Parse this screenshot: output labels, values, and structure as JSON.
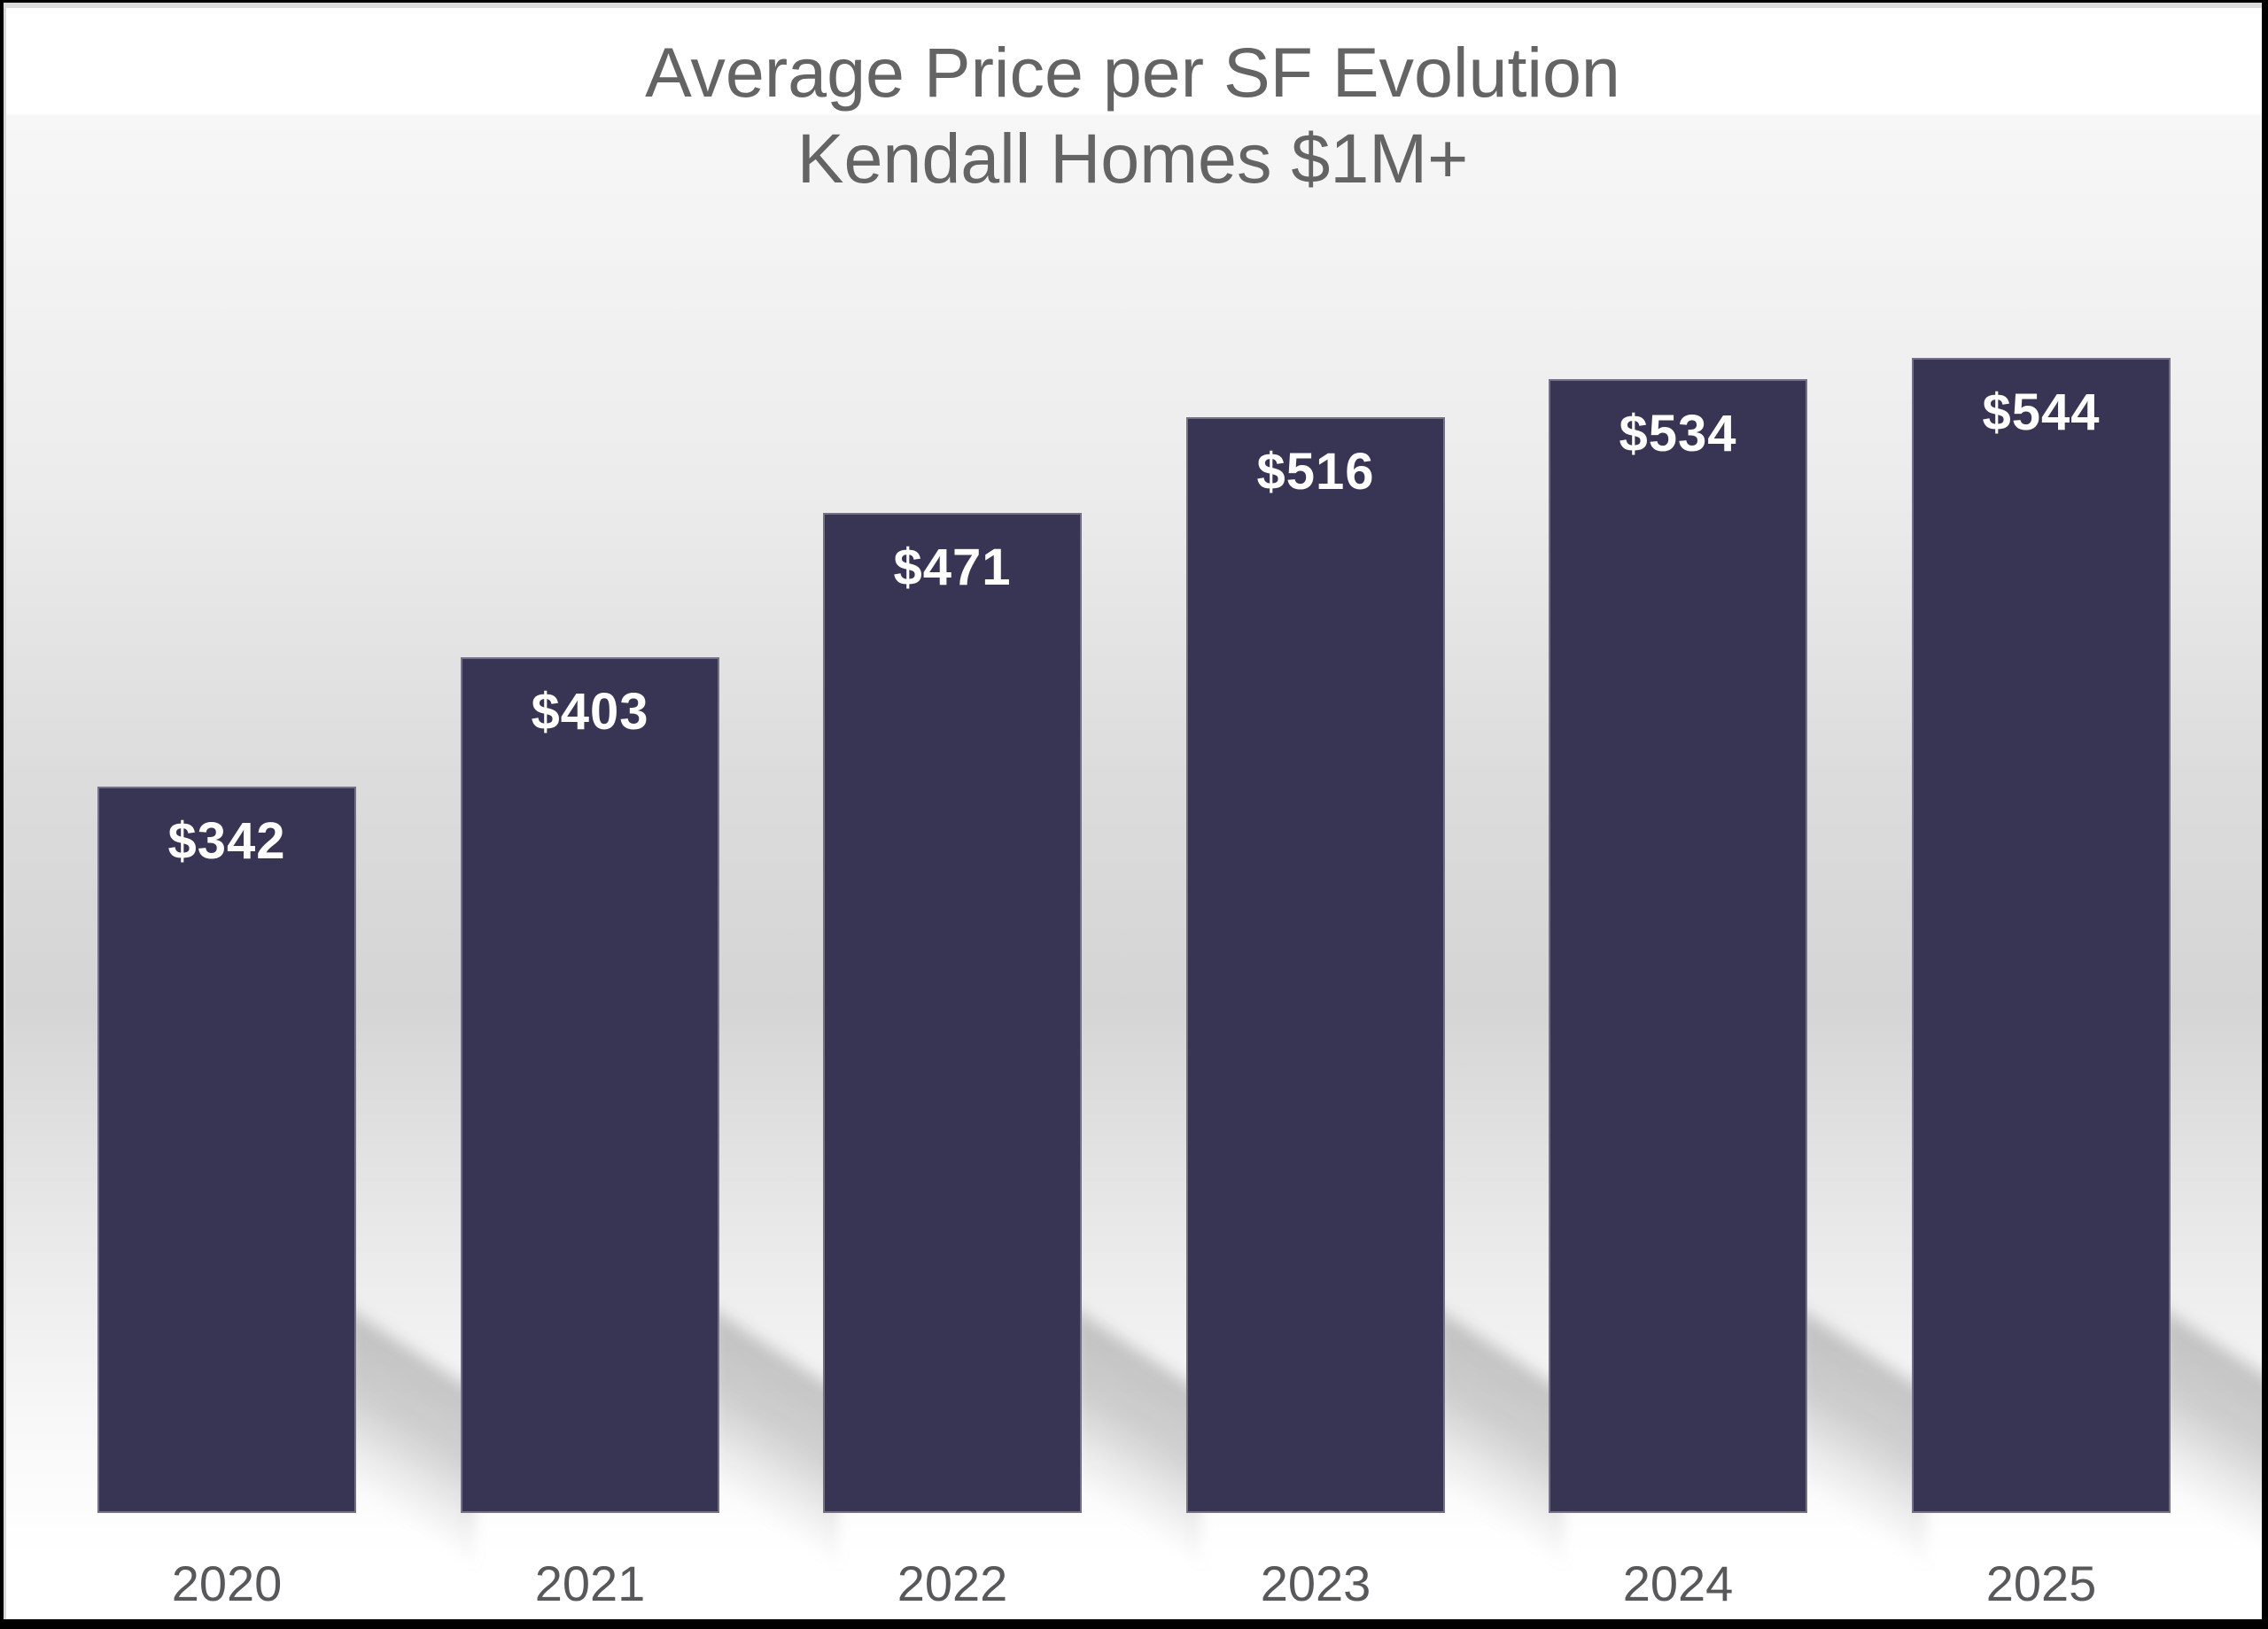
{
  "chart_data": {
    "type": "bar",
    "title": "Average Price per SF Evolution",
    "subtitle": "Kendall Homes $1M+",
    "categories": [
      "2020",
      "2021",
      "2022",
      "2023",
      "2024",
      "2025"
    ],
    "values": [
      342,
      403,
      471,
      516,
      534,
      544
    ],
    "value_labels": [
      "$342",
      "$403",
      "$471",
      "$516",
      "$534",
      "$544"
    ],
    "value_unit": "USD per square foot",
    "series_name": "Average price per SF",
    "legend": "none",
    "grid": false,
    "y_axis_visible": false,
    "x_axis_visible": false,
    "value_label_position": "inside-top",
    "ylim": [
      0,
      658
    ]
  },
  "colors": {
    "bar_fill": "#383454",
    "bar_border": "#8f8ca6",
    "value_label_text": "#ffffff",
    "title_text": "#646464",
    "year_label_text": "#58585a",
    "background_top": "#ffffff",
    "background_mid_gray": "#d5d5d5",
    "frame_border": "#000000"
  }
}
